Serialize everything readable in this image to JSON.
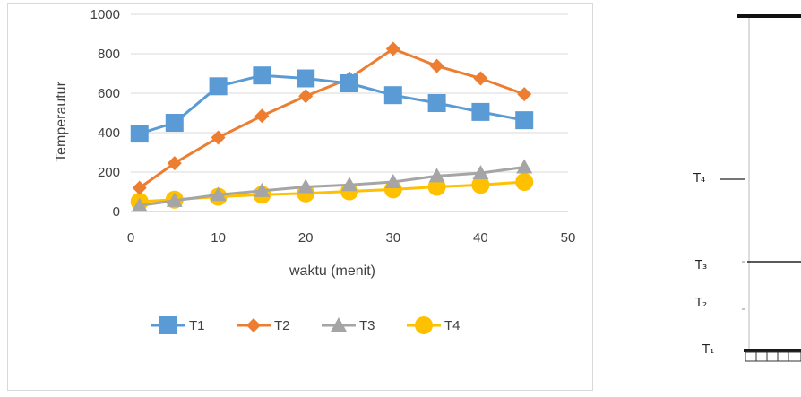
{
  "chart_data": {
    "type": "line",
    "title": "",
    "xlabel": "waktu (menit)",
    "ylabel": "Temperautur",
    "xlim": [
      0,
      50
    ],
    "ylim": [
      0,
      1000
    ],
    "x_ticks": [
      0,
      10,
      20,
      30,
      40,
      50
    ],
    "y_ticks": [
      0,
      200,
      400,
      600,
      800,
      1000
    ],
    "grid": "horizontal",
    "legend_position": "bottom",
    "x": [
      1,
      5,
      10,
      15,
      20,
      25,
      30,
      35,
      40,
      45
    ],
    "series": [
      {
        "name": "T1",
        "color": "#5b9bd5",
        "marker": "square",
        "values": [
          395,
          450,
          635,
          690,
          675,
          650,
          590,
          550,
          505,
          463
        ]
      },
      {
        "name": "T2",
        "color": "#ed7d31",
        "marker": "diamond",
        "values": [
          120,
          245,
          375,
          485,
          585,
          675,
          825,
          738,
          675,
          595
        ]
      },
      {
        "name": "T3",
        "color": "#a5a5a5",
        "marker": "triangle",
        "values": [
          30,
          55,
          85,
          105,
          125,
          135,
          150,
          180,
          195,
          225
        ]
      },
      {
        "name": "T4",
        "color": "#ffc000",
        "marker": "circle",
        "values": [
          50,
          60,
          75,
          85,
          92,
          102,
          112,
          125,
          135,
          150
        ]
      }
    ]
  },
  "diagram": {
    "labels": [
      "T₄",
      "T₃",
      "T₂",
      "T₁"
    ]
  }
}
